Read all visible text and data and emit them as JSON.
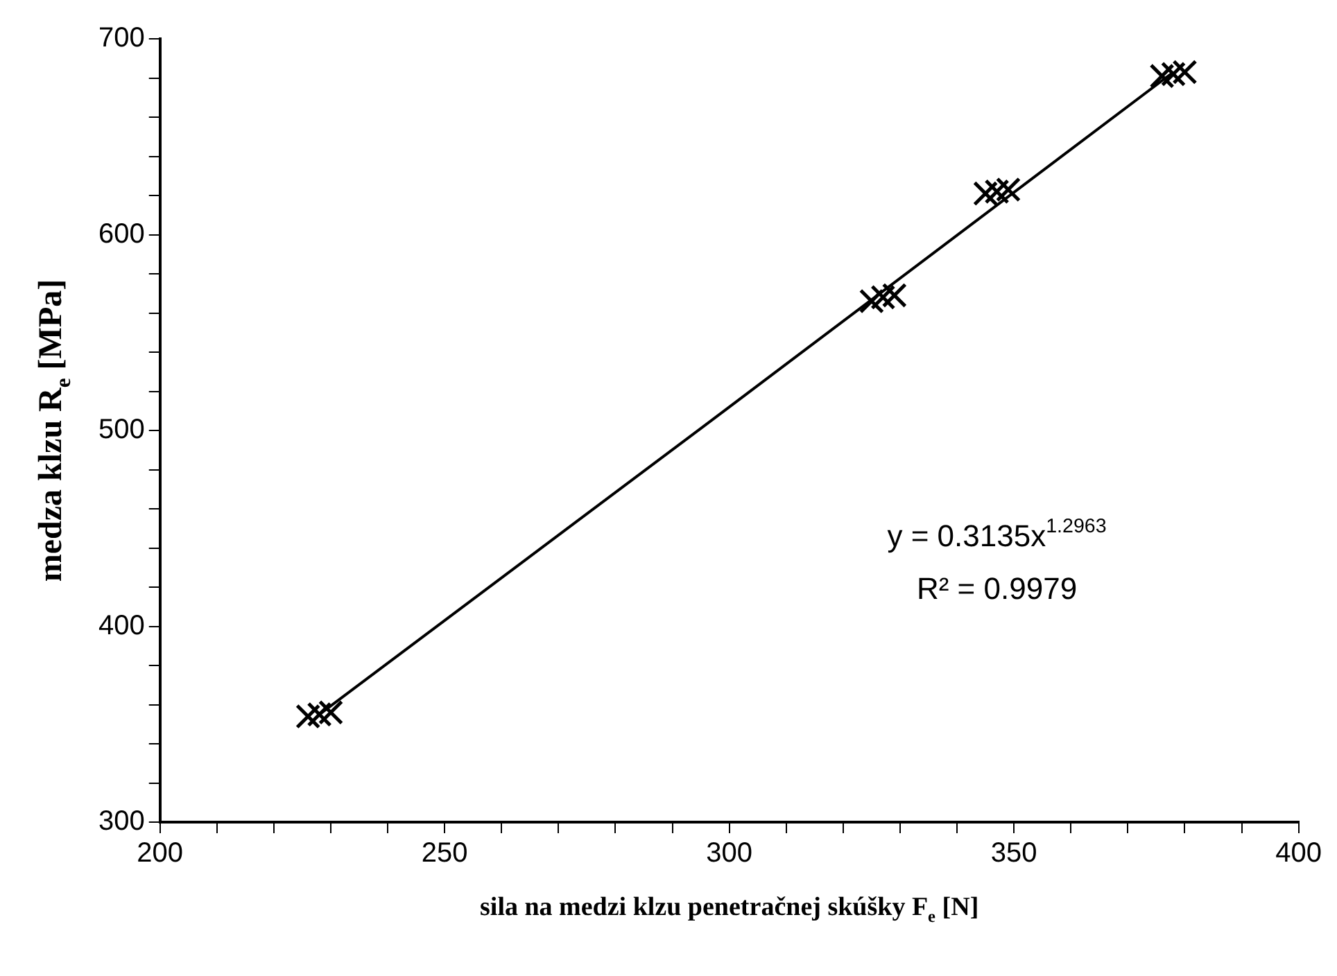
{
  "chart_data": {
    "type": "scatter",
    "xlabel": "sila na medzi klzu penetračnej skúšky F$_{e}$ [N]",
    "ylabel": "medza klzu R$_{e}$ [MPa]",
    "xlim": [
      200,
      400
    ],
    "ylim": [
      300,
      700
    ],
    "xticks": [
      200,
      {
        "value": 210,
        "label": null
      },
      {
        "value": 220,
        "label": null
      },
      {
        "value": 230,
        "label": null
      },
      {
        "value": 240,
        "label": null
      },
      250,
      {
        "value": 260,
        "label": null
      },
      {
        "value": 270,
        "label": null
      },
      {
        "value": 280,
        "label": null
      },
      {
        "value": 290,
        "label": null
      },
      300,
      {
        "value": 310,
        "label": null
      },
      {
        "value": 320,
        "label": null
      },
      {
        "value": 330,
        "label": null
      },
      {
        "value": 340,
        "label": null
      },
      350,
      {
        "value": 360,
        "label": null
      },
      {
        "value": 370,
        "label": null
      },
      {
        "value": 380,
        "label": null
      },
      {
        "value": 390,
        "label": null
      },
      400
    ],
    "yticks": [
      300,
      {
        "value": 320,
        "label": null
      },
      {
        "value": 340,
        "label": null
      },
      {
        "value": 360,
        "label": null
      },
      {
        "value": 380,
        "label": null
      },
      400,
      {
        "value": 420,
        "label": null
      },
      {
        "value": 440,
        "label": null
      },
      {
        "value": 460,
        "label": null
      },
      {
        "value": 480,
        "label": null
      },
      500,
      {
        "value": 520,
        "label": null
      },
      {
        "value": 540,
        "label": null
      },
      {
        "value": 560,
        "label": null
      },
      {
        "value": 580,
        "label": null
      },
      600,
      {
        "value": 620,
        "label": null
      },
      {
        "value": 640,
        "label": null
      },
      {
        "value": 660,
        "label": null
      },
      {
        "value": 680,
        "label": null
      },
      700
    ],
    "grid": false,
    "legend": false,
    "marker": "cross",
    "series": [
      {
        "type": "scatter",
        "color": "#000000",
        "x": [
          226,
          228,
          230,
          325,
          327,
          329,
          345,
          347,
          349,
          376,
          378,
          380
        ],
        "values": [
          354,
          355,
          356,
          566,
          568,
          569,
          621,
          622,
          623,
          681,
          682,
          683
        ]
      },
      {
        "type": "line",
        "color": "#000000",
        "marker": "none",
        "x": [
          228,
          300,
          378
        ],
        "values": [
          355,
          512,
          683
        ]
      }
    ],
    "annotations": [
      "y = 0.3135x$^{1.2963}$",
      "R² = 0.9979"
    ]
  }
}
